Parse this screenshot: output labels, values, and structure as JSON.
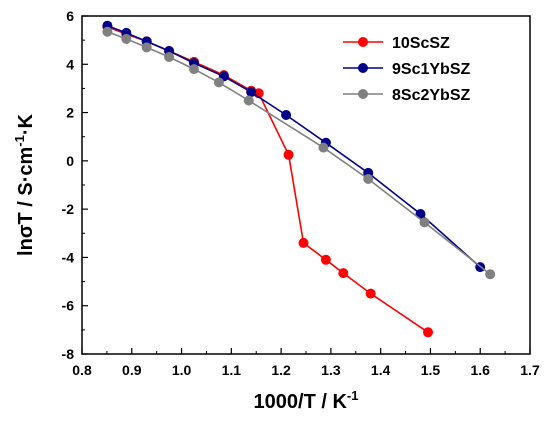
{
  "chart_data": {
    "type": "line",
    "xlabel": "1000/T / K",
    "xlabel_sup": "-1",
    "ylabel": "lnσT / S·cm",
    "ylabel_sup": "-1",
    "ylabel_tail": "·K",
    "xlim": [
      0.8,
      1.7
    ],
    "ylim": [
      -8,
      6
    ],
    "xticks": [
      "0.8",
      "0.9",
      "1.0",
      "1.1",
      "1.2",
      "1.3",
      "1.4",
      "1.5",
      "1.6",
      "1.7"
    ],
    "yticks": [
      "-8",
      "-6",
      "-4",
      "-2",
      "0",
      "2",
      "4",
      "6"
    ],
    "grid": false,
    "legend_position": "top-right",
    "series": [
      {
        "name": "10ScSZ",
        "color": "#ff0000",
        "x": [
          0.851,
          0.889,
          0.93,
          0.975,
          1.025,
          1.085,
          1.14,
          1.155,
          1.215,
          1.245,
          1.29,
          1.325,
          1.38,
          1.495
        ],
        "y": [
          5.55,
          5.25,
          4.95,
          4.55,
          4.1,
          3.55,
          2.9,
          2.8,
          0.25,
          -3.4,
          -4.1,
          -4.65,
          -5.5,
          -7.1
        ]
      },
      {
        "name": "9Sc1YbSZ",
        "color": "#00008b",
        "x": [
          0.851,
          0.889,
          0.93,
          0.975,
          1.025,
          1.085,
          1.14,
          1.21,
          1.29,
          1.375,
          1.48,
          1.6
        ],
        "y": [
          5.6,
          5.3,
          4.95,
          4.55,
          4.05,
          3.5,
          2.85,
          1.9,
          0.75,
          -0.5,
          -2.2,
          -4.4
        ]
      },
      {
        "name": "8Sc2YbSZ",
        "color": "#808080",
        "x": [
          0.851,
          0.889,
          0.93,
          0.975,
          1.025,
          1.075,
          1.135,
          1.285,
          1.375,
          1.488,
          1.62
        ],
        "y": [
          5.35,
          5.05,
          4.7,
          4.3,
          3.8,
          3.25,
          2.5,
          0.55,
          -0.75,
          -2.55,
          -4.7
        ]
      }
    ]
  }
}
